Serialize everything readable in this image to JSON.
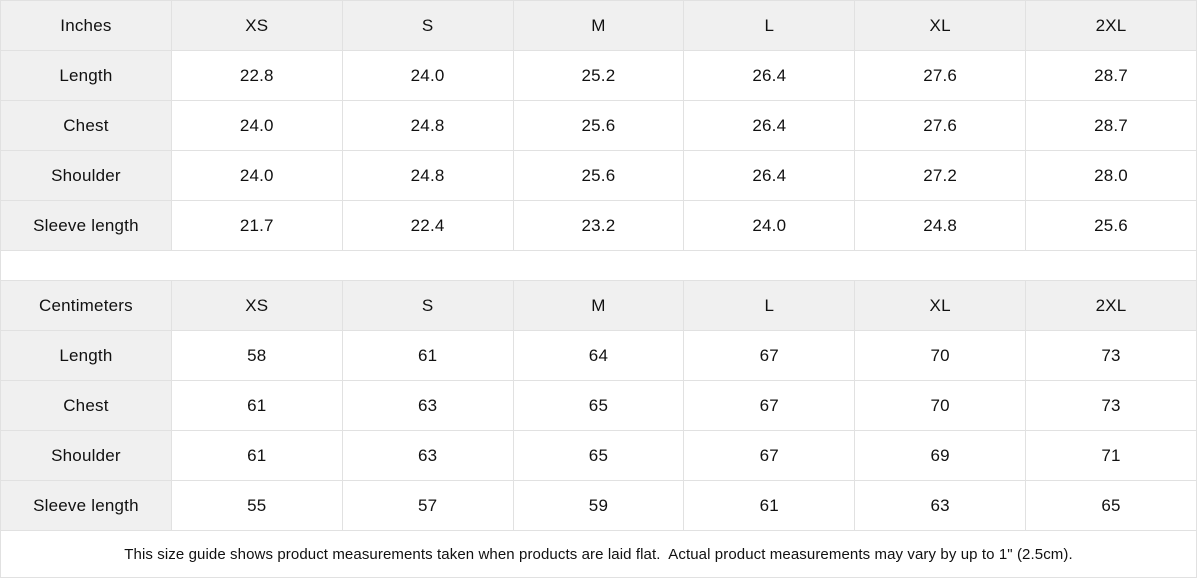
{
  "colors": {
    "header_bg": "#f0f0f0",
    "cell_bg": "#ffffff",
    "border": "#e1e1e1",
    "text": "#111111"
  },
  "tables": [
    {
      "unit_label": "Inches",
      "size_headers": [
        "XS",
        "S",
        "M",
        "L",
        "XL",
        "2XL"
      ],
      "rows": [
        {
          "label": "Length",
          "values": [
            "22.8",
            "24.0",
            "25.2",
            "26.4",
            "27.6",
            "28.7"
          ]
        },
        {
          "label": "Chest",
          "values": [
            "24.0",
            "24.8",
            "25.6",
            "26.4",
            "27.6",
            "28.7"
          ]
        },
        {
          "label": "Shoulder",
          "values": [
            "24.0",
            "24.8",
            "25.6",
            "26.4",
            "27.2",
            "28.0"
          ]
        },
        {
          "label": "Sleeve length",
          "values": [
            "21.7",
            "22.4",
            "23.2",
            "24.0",
            "24.8",
            "25.6"
          ]
        }
      ]
    },
    {
      "unit_label": "Centimeters",
      "size_headers": [
        "XS",
        "S",
        "M",
        "L",
        "XL",
        "2XL"
      ],
      "rows": [
        {
          "label": "Length",
          "values": [
            "58",
            "61",
            "64",
            "67",
            "70",
            "73"
          ]
        },
        {
          "label": "Chest",
          "values": [
            "61",
            "63",
            "65",
            "67",
            "70",
            "73"
          ]
        },
        {
          "label": "Shoulder",
          "values": [
            "61",
            "63",
            "65",
            "67",
            "69",
            "71"
          ]
        },
        {
          "label": "Sleeve length",
          "values": [
            "55",
            "57",
            "59",
            "61",
            "63",
            "65"
          ]
        }
      ]
    }
  ],
  "footer_note": "This size guide shows product measurements taken when products are laid flat.  Actual product measurements may vary by up to 1\" (2.5cm)."
}
